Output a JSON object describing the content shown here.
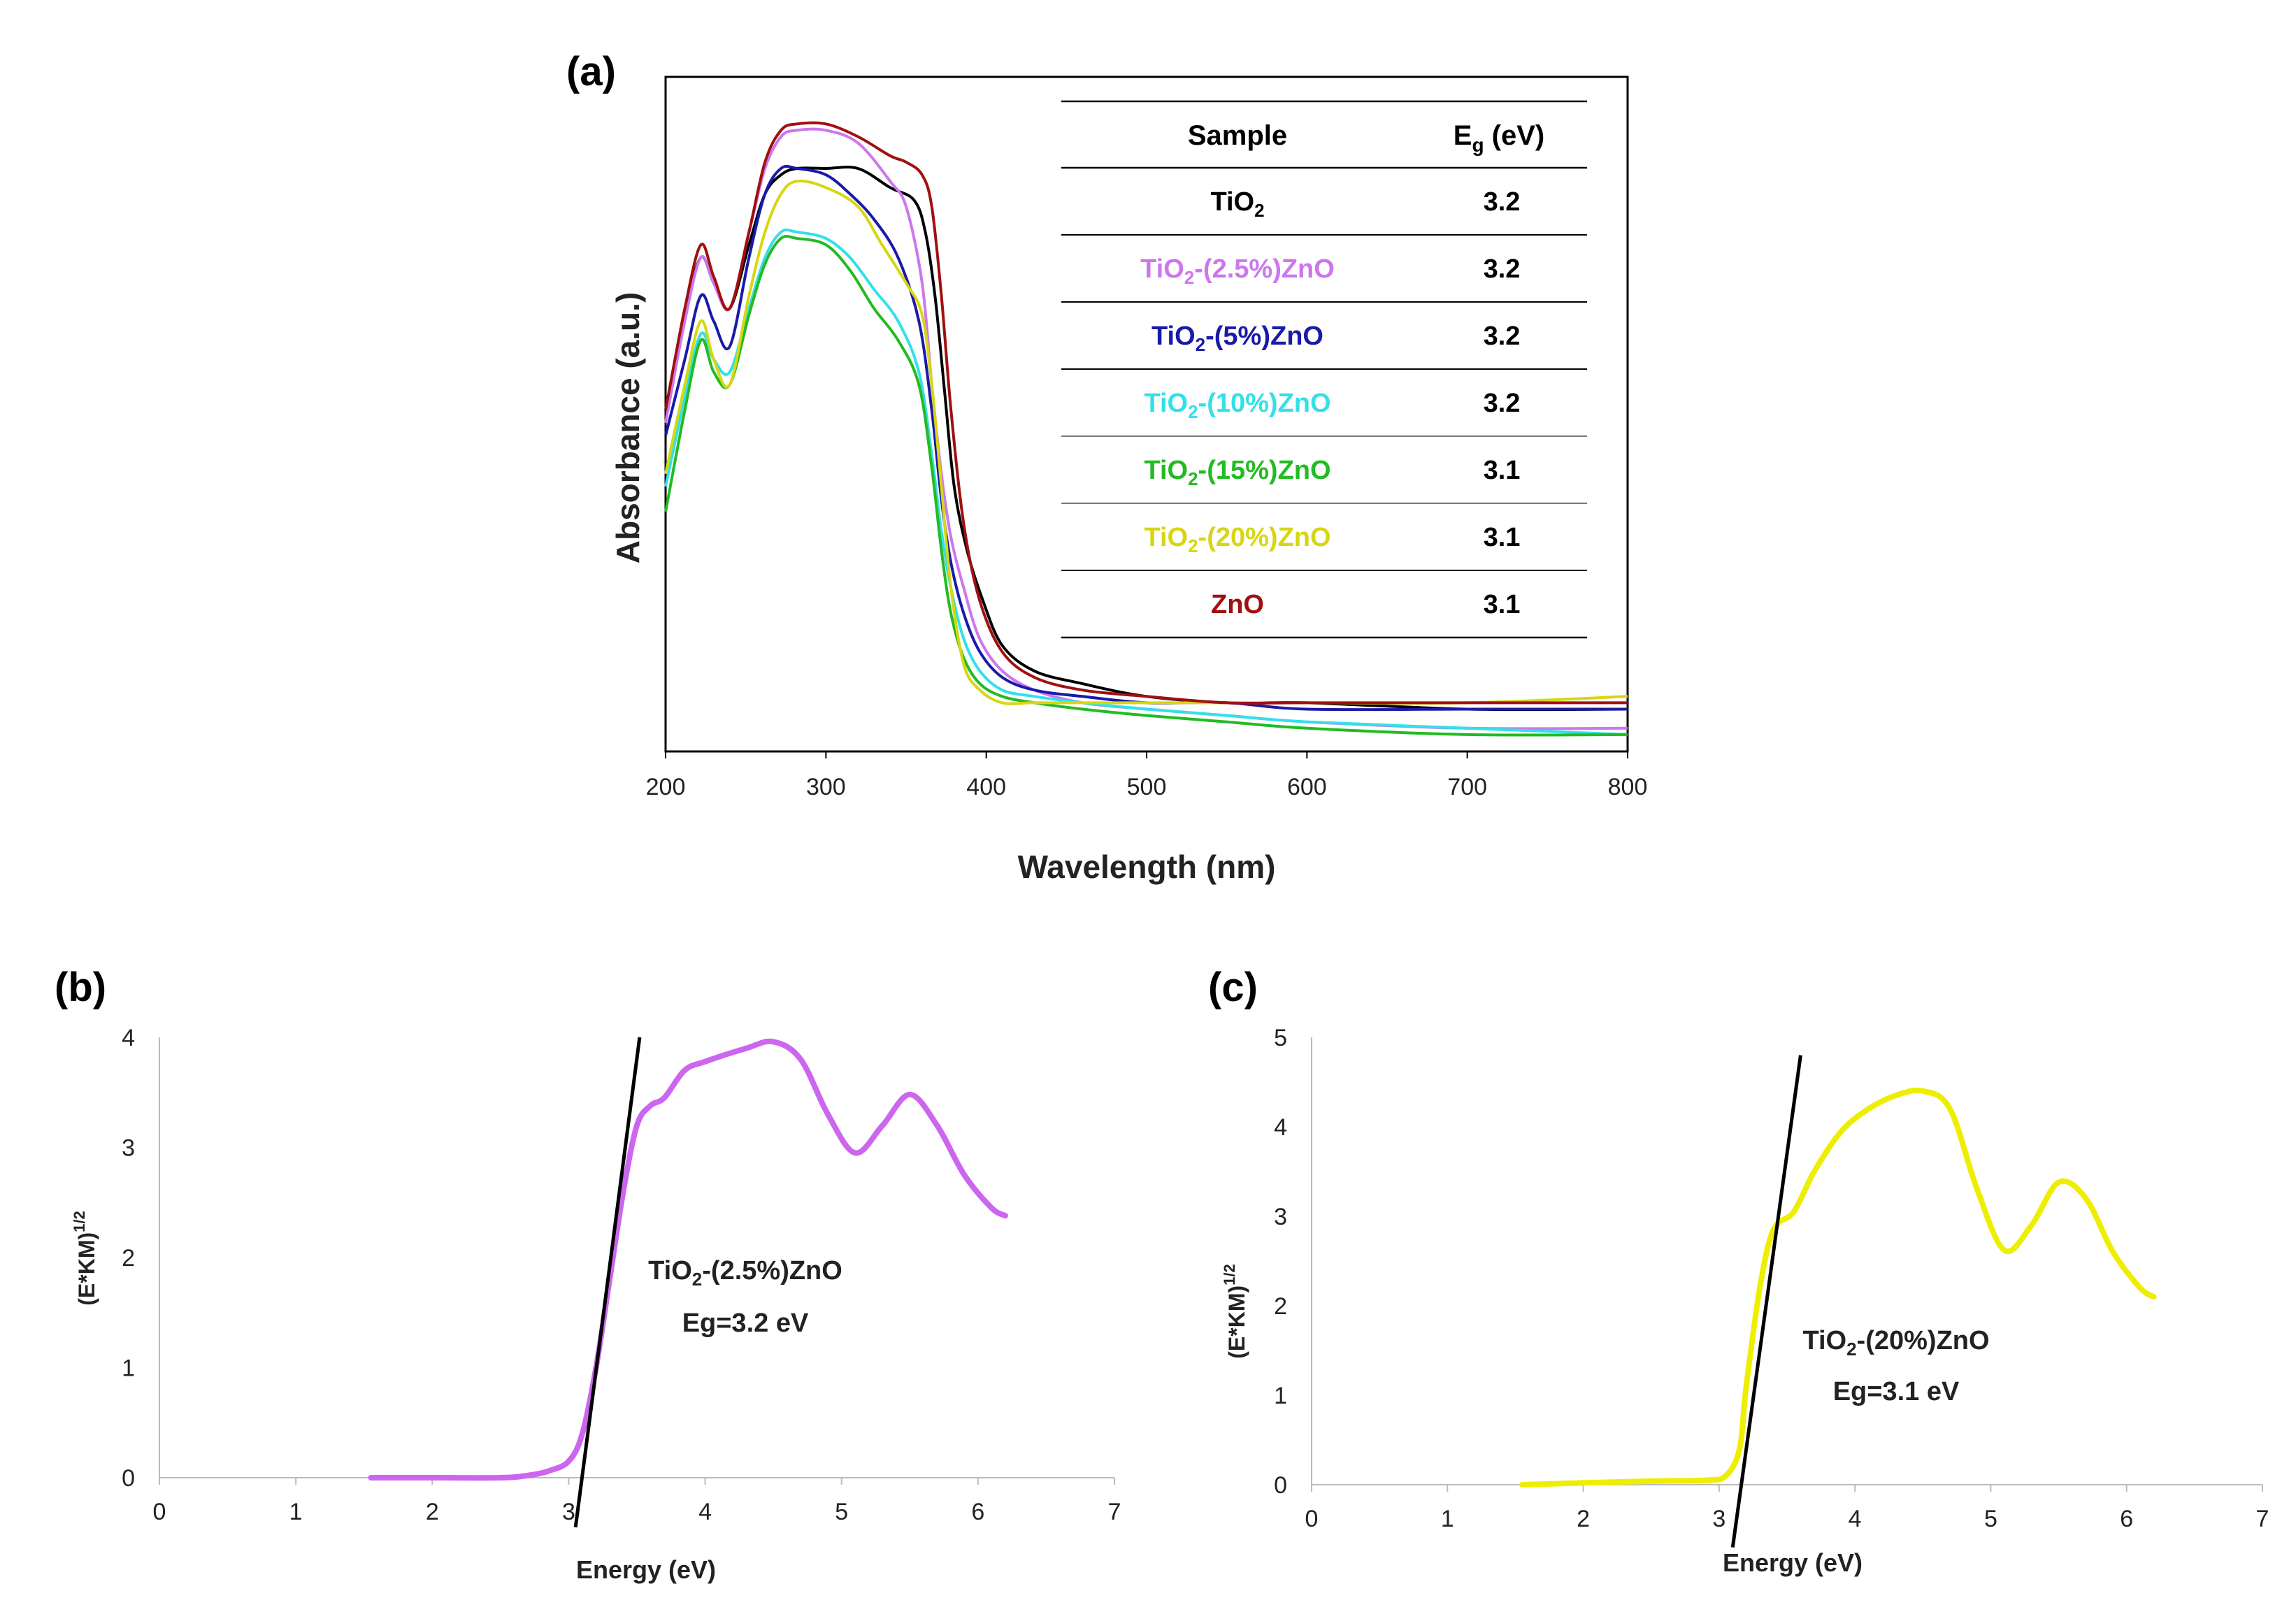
{
  "panel_a": {
    "label": "(a)",
    "xlabel": "Wavelength (nm)",
    "ylabel": "Absorbance (a.u.)",
    "table": {
      "header_sample": "Sample",
      "header_eg_main": "E",
      "header_eg_sub": "g",
      "header_eg_unit": " (eV)",
      "rows": [
        {
          "pre": "TiO",
          "sub": "2",
          "post": "",
          "eg": "3.2",
          "color": "#000000"
        },
        {
          "pre": "TiO",
          "sub": "2",
          "post": "-(2.5%)ZnO",
          "eg": "3.2",
          "color": "#cc77ee"
        },
        {
          "pre": "TiO",
          "sub": "2",
          "post": "-(5%)ZnO",
          "eg": "3.2",
          "color": "#1a1aa8"
        },
        {
          "pre": "TiO",
          "sub": "2",
          "post": "-(10%)ZnO",
          "eg": "3.2",
          "color": "#33e0e8"
        },
        {
          "pre": "TiO",
          "sub": "2",
          "post": "-(15%)ZnO",
          "eg": "3.1",
          "color": "#22bb22"
        },
        {
          "pre": "TiO",
          "sub": "2",
          "post": "-(20%)ZnO",
          "eg": "3.1",
          "color": "#d6d614"
        },
        {
          "pre": "ZnO",
          "sub": "",
          "post": "",
          "eg": "3.1",
          "color": "#a01010"
        }
      ]
    }
  },
  "panel_b": {
    "label": "(b)",
    "xlabel": "Energy (eV)",
    "ylabel_main": "(E*KM)",
    "ylabel_sup": "1/2",
    "annotation_pre": "TiO",
    "annotation_sub": "2",
    "annotation_post": "-(2.5%)ZnO",
    "annotation_eg": "Eg=3.2 eV"
  },
  "panel_c": {
    "label": "(c)",
    "xlabel": "Energy (eV)",
    "ylabel_main": "(E*KM)",
    "ylabel_sup": "1/2",
    "annotation_pre": "TiO",
    "annotation_sub": "2",
    "annotation_post": "-(20%)ZnO",
    "annotation_eg": "Eg=3.1 eV"
  },
  "chart_data": [
    {
      "type": "line",
      "xlim": [
        200,
        800
      ],
      "xticks": [
        200,
        300,
        400,
        500,
        600,
        700,
        800
      ],
      "ylim": [
        0,
        1
      ],
      "yticks": [],
      "grid": false,
      "legend_placement": "top-right table",
      "series": [
        {
          "name": "TiO2",
          "color": "#000000",
          "x": [
            200,
            212,
            222,
            230,
            240,
            252,
            262,
            272,
            282,
            300,
            320,
            340,
            355,
            362,
            368,
            374,
            380,
            388,
            398,
            410,
            430,
            460,
            500,
            550,
            600,
            700,
            800
          ],
          "y": [
            0.52,
            0.67,
            0.76,
            0.72,
            0.68,
            0.78,
            0.86,
            0.89,
            0.9,
            0.9,
            0.9,
            0.87,
            0.85,
            0.8,
            0.7,
            0.55,
            0.4,
            0.3,
            0.22,
            0.15,
            0.11,
            0.09,
            0.07,
            0.06,
            0.06,
            0.05,
            0.05
          ]
        },
        {
          "name": "TiO2-(2.5%)ZnO",
          "color": "#cc77ee",
          "x": [
            200,
            212,
            222,
            230,
            240,
            252,
            262,
            272,
            282,
            300,
            320,
            340,
            350,
            360,
            366,
            372,
            378,
            386,
            396,
            410,
            430,
            460,
            500,
            550,
            600,
            700,
            800
          ],
          "y": [
            0.5,
            0.66,
            0.76,
            0.72,
            0.68,
            0.8,
            0.9,
            0.95,
            0.96,
            0.96,
            0.94,
            0.88,
            0.84,
            0.72,
            0.56,
            0.42,
            0.32,
            0.24,
            0.16,
            0.11,
            0.08,
            0.06,
            0.05,
            0.04,
            0.03,
            0.02,
            0.02
          ]
        },
        {
          "name": "TiO2-(5%)ZnO",
          "color": "#1a1aa8",
          "x": [
            200,
            212,
            222,
            230,
            240,
            252,
            262,
            272,
            282,
            300,
            315,
            330,
            345,
            358,
            366,
            372,
            378,
            386,
            396,
            410,
            430,
            460,
            500,
            550,
            600,
            700,
            800
          ],
          "y": [
            0.48,
            0.6,
            0.7,
            0.66,
            0.62,
            0.76,
            0.86,
            0.9,
            0.9,
            0.89,
            0.86,
            0.82,
            0.76,
            0.66,
            0.52,
            0.38,
            0.28,
            0.2,
            0.14,
            0.1,
            0.08,
            0.07,
            0.06,
            0.06,
            0.05,
            0.05,
            0.05
          ]
        },
        {
          "name": "TiO2-(10%)ZnO",
          "color": "#33e0e8",
          "x": [
            200,
            212,
            222,
            230,
            240,
            252,
            262,
            272,
            282,
            300,
            315,
            330,
            345,
            358,
            366,
            372,
            378,
            386,
            396,
            410,
            430,
            460,
            500,
            550,
            600,
            700,
            800
          ],
          "y": [
            0.4,
            0.54,
            0.64,
            0.6,
            0.58,
            0.68,
            0.76,
            0.8,
            0.8,
            0.79,
            0.76,
            0.71,
            0.66,
            0.58,
            0.45,
            0.33,
            0.24,
            0.16,
            0.11,
            0.08,
            0.07,
            0.06,
            0.05,
            0.04,
            0.03,
            0.02,
            0.01
          ]
        },
        {
          "name": "TiO2-(15%)ZnO",
          "color": "#22bb22",
          "x": [
            200,
            212,
            222,
            230,
            240,
            252,
            262,
            272,
            282,
            300,
            315,
            330,
            345,
            358,
            366,
            372,
            378,
            386,
            396,
            410,
            430,
            460,
            500,
            550,
            600,
            700,
            800
          ],
          "y": [
            0.36,
            0.52,
            0.63,
            0.58,
            0.56,
            0.67,
            0.75,
            0.79,
            0.79,
            0.78,
            0.74,
            0.68,
            0.63,
            0.56,
            0.43,
            0.3,
            0.2,
            0.13,
            0.09,
            0.07,
            0.06,
            0.05,
            0.04,
            0.03,
            0.02,
            0.01,
            0.01
          ]
        },
        {
          "name": "TiO2-(20%)ZnO",
          "color": "#d6d614",
          "x": [
            200,
            212,
            222,
            230,
            240,
            252,
            262,
            272,
            282,
            300,
            320,
            335,
            350,
            360,
            366,
            372,
            378,
            386,
            396,
            410,
            430,
            460,
            500,
            550,
            600,
            700,
            800
          ],
          "y": [
            0.42,
            0.56,
            0.66,
            0.6,
            0.56,
            0.7,
            0.8,
            0.86,
            0.88,
            0.87,
            0.84,
            0.78,
            0.72,
            0.67,
            0.56,
            0.4,
            0.24,
            0.12,
            0.08,
            0.06,
            0.06,
            0.06,
            0.06,
            0.06,
            0.06,
            0.06,
            0.07
          ]
        },
        {
          "name": "ZnO",
          "color": "#a01010",
          "x": [
            200,
            212,
            222,
            230,
            240,
            252,
            262,
            272,
            282,
            300,
            320,
            340,
            350,
            360,
            366,
            372,
            378,
            386,
            396,
            410,
            430,
            460,
            500,
            550,
            600,
            700,
            800
          ],
          "y": [
            0.52,
            0.68,
            0.78,
            0.73,
            0.68,
            0.8,
            0.91,
            0.96,
            0.97,
            0.97,
            0.95,
            0.92,
            0.91,
            0.89,
            0.84,
            0.7,
            0.52,
            0.34,
            0.22,
            0.14,
            0.1,
            0.08,
            0.07,
            0.06,
            0.06,
            0.06,
            0.06
          ]
        }
      ]
    },
    {
      "type": "line",
      "xlim": [
        0,
        7
      ],
      "ylim": [
        0,
        4
      ],
      "xticks": [
        0,
        1,
        2,
        3,
        4,
        5,
        6,
        7
      ],
      "yticks": [
        0,
        1,
        2,
        3,
        4
      ],
      "grid": false,
      "series": [
        {
          "color": "#cc66ee",
          "x": [
            1.55,
            2.0,
            2.5,
            2.7,
            2.85,
            3.0,
            3.1,
            3.2,
            3.3,
            3.4,
            3.5,
            3.6,
            3.7,
            3.85,
            4.0,
            4.3,
            4.5,
            4.7,
            4.9,
            5.1,
            5.3,
            5.5,
            5.7,
            5.9,
            6.1,
            6.2
          ],
          "y": [
            0,
            0,
            0,
            0.02,
            0.06,
            0.15,
            0.4,
            1.0,
            1.8,
            2.6,
            3.2,
            3.38,
            3.45,
            3.7,
            3.78,
            3.9,
            3.96,
            3.8,
            3.3,
            2.95,
            3.2,
            3.48,
            3.2,
            2.75,
            2.45,
            2.38
          ]
        },
        {
          "color": "#000000",
          "x": [
            3.05,
            3.52
          ],
          "y": [
            -0.45,
            4.0
          ]
        }
      ]
    },
    {
      "type": "line",
      "xlim": [
        0,
        7
      ],
      "ylim": [
        0,
        5
      ],
      "xticks": [
        0,
        1,
        2,
        3,
        4,
        5,
        6,
        7
      ],
      "yticks": [
        0,
        1,
        2,
        3,
        4,
        5
      ],
      "grid": false,
      "series": [
        {
          "color": "#eeee00",
          "x": [
            1.55,
            2.0,
            2.5,
            2.9,
            3.05,
            3.15,
            3.2,
            3.3,
            3.4,
            3.55,
            3.7,
            3.9,
            4.1,
            4.3,
            4.5,
            4.7,
            4.9,
            5.1,
            5.3,
            5.5,
            5.7,
            5.9,
            6.1,
            6.2
          ],
          "y": [
            0,
            0.02,
            0.04,
            0.05,
            0.1,
            0.4,
            1.1,
            2.2,
            2.85,
            3.05,
            3.5,
            3.95,
            4.2,
            4.35,
            4.4,
            4.2,
            3.3,
            2.62,
            2.9,
            3.38,
            3.2,
            2.6,
            2.2,
            2.1
          ]
        },
        {
          "color": "#000000",
          "x": [
            3.1,
            3.6
          ],
          "y": [
            -0.7,
            4.8
          ]
        }
      ]
    }
  ]
}
